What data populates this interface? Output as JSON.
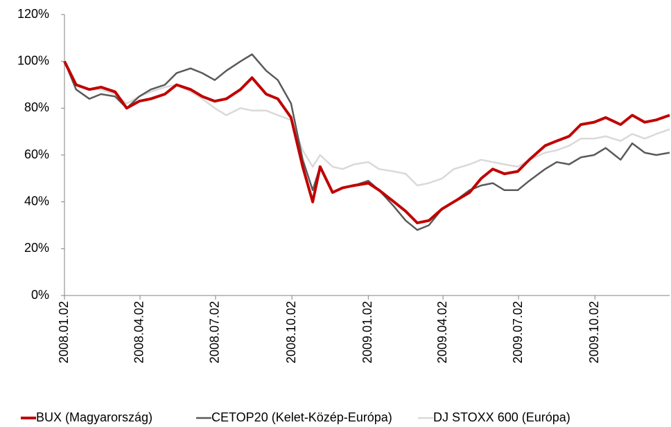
{
  "chart_data": {
    "type": "line",
    "x": [
      "2008.01.02",
      "2008.01.16",
      "2008.02.01",
      "2008.02.15",
      "2008.03.03",
      "2008.03.17",
      "2008.04.01",
      "2008.04.15",
      "2008.05.02",
      "2008.05.16",
      "2008.06.02",
      "2008.06.16",
      "2008.07.01",
      "2008.07.15",
      "2008.08.01",
      "2008.08.15",
      "2008.09.01",
      "2008.09.15",
      "2008.10.01",
      "2008.10.15",
      "2008.10.27",
      "2008.11.05",
      "2008.11.20",
      "2008.12.02",
      "2008.12.16",
      "2009.01.02",
      "2009.01.15",
      "2009.02.02",
      "2009.02.16",
      "2009.03.02",
      "2009.03.16",
      "2009.04.01",
      "2009.04.15",
      "2009.05.04",
      "2009.05.18",
      "2009.06.01",
      "2009.06.15",
      "2009.07.01",
      "2009.07.15",
      "2009.08.03",
      "2009.08.17",
      "2009.09.01",
      "2009.09.15",
      "2009.10.01",
      "2009.10.15",
      "2009.11.02",
      "2009.11.16",
      "2009.12.01",
      "2009.12.15",
      "2009.12.31"
    ],
    "series": [
      {
        "name": "BUX (Magyarország)",
        "color": "#c00000",
        "values": [
          100,
          90,
          88,
          89,
          87,
          80,
          83,
          84,
          86,
          90,
          88,
          85,
          83,
          84,
          88,
          93,
          86,
          84,
          76,
          55,
          40,
          55,
          44,
          46,
          47,
          48,
          45,
          40,
          36,
          31,
          32,
          37,
          40,
          44,
          50,
          54,
          52,
          53,
          58,
          64,
          66,
          68,
          73,
          74,
          76,
          73,
          77,
          74,
          75,
          77
        ]
      },
      {
        "name": "CETOP20 (Kelet-Közép-Európa)",
        "color": "#595959",
        "values": [
          100,
          88,
          84,
          86,
          85,
          80,
          85,
          88,
          90,
          95,
          97,
          95,
          92,
          96,
          100,
          103,
          96,
          92,
          82,
          58,
          45,
          55,
          44,
          46,
          47,
          49,
          45,
          38,
          32,
          28,
          30,
          37,
          40,
          45,
          47,
          48,
          45,
          45,
          49,
          54,
          57,
          56,
          59,
          60,
          63,
          58,
          65,
          61,
          60,
          61
        ]
      },
      {
        "name": "DJ STOXX 600 (Európa)",
        "color": "#d9d9d9",
        "values": [
          100,
          90,
          88,
          88,
          86,
          82,
          85,
          87,
          89,
          90,
          87,
          84,
          80,
          77,
          80,
          79,
          79,
          77,
          75,
          62,
          55,
          60,
          55,
          54,
          56,
          57,
          54,
          53,
          52,
          47,
          48,
          50,
          54,
          56,
          58,
          57,
          56,
          55,
          58,
          61,
          62,
          64,
          67,
          67,
          68,
          66,
          69,
          67,
          69,
          71
        ]
      }
    ],
    "xlim": [
      "2008.01.02",
      "2009.12.31"
    ],
    "xticks": [
      "2008.01.02",
      "2008.04.02",
      "2008.07.02",
      "2008.10.02",
      "2009.01.02",
      "2009.04.02",
      "2009.07.02",
      "2009.10.02"
    ],
    "ylim": [
      0,
      120
    ],
    "yticks": [
      {
        "value": 0,
        "label": "0%"
      },
      {
        "value": 20,
        "label": "20%"
      },
      {
        "value": 40,
        "label": "40%"
      },
      {
        "value": 60,
        "label": "60%"
      },
      {
        "value": 80,
        "label": "80%"
      },
      {
        "value": 100,
        "label": "100%"
      },
      {
        "value": 120,
        "label": "120%"
      }
    ],
    "grid": false
  }
}
